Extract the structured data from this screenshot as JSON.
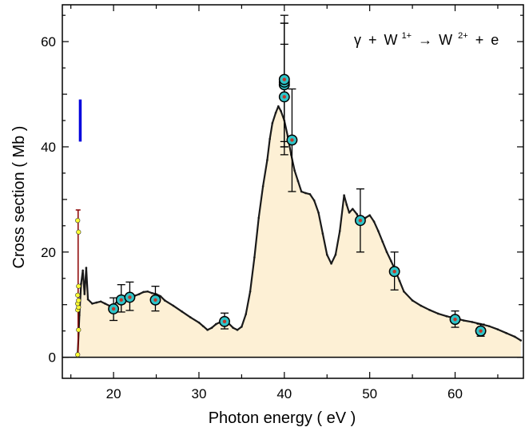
{
  "chart_data": {
    "type": "line",
    "title": "",
    "xlabel": "Photon energy  ( eV )",
    "ylabel": "Cross section  ( Mb )",
    "xlim": [
      14,
      68
    ],
    "ylim": [
      -4,
      67
    ],
    "x_ticks": [
      20,
      30,
      40,
      50,
      60
    ],
    "y_ticks": [
      0,
      20,
      40,
      60
    ],
    "x_tick_labels": [
      "20",
      "30",
      "40",
      "50",
      "60"
    ],
    "y_tick_labels": [
      "0",
      "20",
      "40",
      "60"
    ],
    "grid": false,
    "legend": "none",
    "annotation": {
      "gamma": "γ",
      "plus1": "+",
      "ion1": "W",
      "charge1": "1+",
      "arrow": "→",
      "ion2": "W",
      "charge2": "2+",
      "plus2": "+",
      "electron": "e"
    },
    "colors": {
      "fill": "#fdf0d5",
      "curve": "#1a1a1a",
      "marker_face": "#2ec4c8",
      "marker_center": "#c0392b",
      "error_bar": "#000000",
      "low_energy_points": "#ffff33",
      "low_energy_bar": "#8b0000",
      "blue_bar": "#0000dd"
    },
    "series": [
      {
        "kind": "continuous",
        "x": [
          15.8,
          16.0,
          16.2,
          16.4,
          16.6,
          16.8,
          17.0,
          17.5,
          18.0,
          18.5,
          19.0,
          19.5,
          20.0,
          20.5,
          21.0,
          21.5,
          22.0,
          22.5,
          23.0,
          23.5,
          24.0,
          24.5,
          25.0,
          25.5,
          26.0,
          27.0,
          28.0,
          29.0,
          30.0,
          30.5,
          31.0,
          31.5,
          32.0,
          32.5,
          33.0,
          33.5,
          34.0,
          34.5,
          35.0,
          35.5,
          36.0,
          36.5,
          37.0,
          37.5,
          38.0,
          38.3,
          38.6,
          39.0,
          39.3,
          39.6,
          40.0,
          40.4,
          40.8,
          41.2,
          41.6,
          42.0,
          42.5,
          43.0,
          43.5,
          44.0,
          44.5,
          45.0,
          45.5,
          46.0,
          46.5,
          47.0,
          47.3,
          47.6,
          48.0,
          48.5,
          49.0,
          49.5,
          50.0,
          50.5,
          51.0,
          51.5,
          52.0,
          52.5,
          53.0,
          53.5,
          54.0,
          55.0,
          56.0,
          57.0,
          58.0,
          59.0,
          60.0,
          61.0,
          62.0,
          63.0,
          64.0,
          65.0,
          66.0,
          67.0,
          67.7
        ],
        "y": [
          0.5,
          8,
          14,
          16.5,
          12,
          17,
          11,
          10.2,
          10.4,
          10.6,
          10.2,
          9.8,
          9.8,
          10.8,
          11.2,
          11.8,
          11.9,
          11.7,
          12.0,
          12.4,
          12.5,
          12.2,
          12.0,
          11.6,
          10.8,
          9.8,
          8.7,
          7.6,
          6.6,
          5.9,
          5.2,
          5.6,
          6.3,
          6.7,
          7.0,
          6.4,
          5.6,
          5.2,
          5.8,
          8.2,
          12.5,
          19.0,
          26.5,
          32.5,
          37.5,
          41.5,
          44.5,
          46.5,
          47.7,
          46.8,
          45.0,
          42.0,
          38.5,
          35.5,
          33.5,
          31.5,
          31.2,
          31.0,
          29.8,
          27.5,
          23.5,
          19.5,
          17.8,
          19.5,
          24.0,
          30.8,
          29.0,
          27.5,
          28.2,
          27.2,
          25.5,
          26.5,
          27.0,
          25.8,
          24.0,
          22.0,
          20.0,
          18.3,
          16.5,
          14.5,
          12.5,
          10.8,
          9.8,
          9.0,
          8.3,
          7.8,
          7.4,
          7.0,
          6.7,
          6.3,
          5.9,
          5.3,
          4.6,
          3.9,
          3.2
        ]
      },
      {
        "kind": "measured",
        "x": [
          20.0,
          20.9,
          21.9,
          24.9,
          33.0,
          40.0,
          40.0,
          40.0,
          40.0,
          40.9,
          48.9,
          52.9,
          60.0,
          63.0
        ],
        "y": [
          9.2,
          10.9,
          11.4,
          10.9,
          6.8,
          49.5,
          51.8,
          52.3,
          52.8,
          41.3,
          26.0,
          16.3,
          7.2,
          5.0
        ],
        "err_high": [
          11.3,
          13.8,
          14.3,
          13.5,
          8.4,
          59.5,
          63.5,
          63.5,
          65.0,
          51.0,
          32.0,
          20.0,
          8.8,
          6.3
        ],
        "err_low": [
          7.0,
          8.6,
          8.9,
          8.8,
          5.4,
          40.0,
          41.0,
          40.0,
          38.5,
          31.5,
          20.0,
          12.8,
          5.7,
          4.0
        ]
      },
      {
        "kind": "low_energy_points",
        "x": [
          15.8,
          15.9,
          15.8,
          15.9,
          15.8,
          15.9,
          15.8,
          15.9,
          15.9,
          15.8
        ],
        "y": [
          0.5,
          5.2,
          9.0,
          9.5,
          10.2,
          10.8,
          11.8,
          13.5,
          23.8,
          26.0
        ],
        "bar_x": 15.85,
        "bar_low": 0.3,
        "bar_high": 28.0
      },
      {
        "kind": "blue_bar",
        "x": 16.1,
        "y_low": 41.0,
        "y_high": 49.0
      }
    ]
  }
}
